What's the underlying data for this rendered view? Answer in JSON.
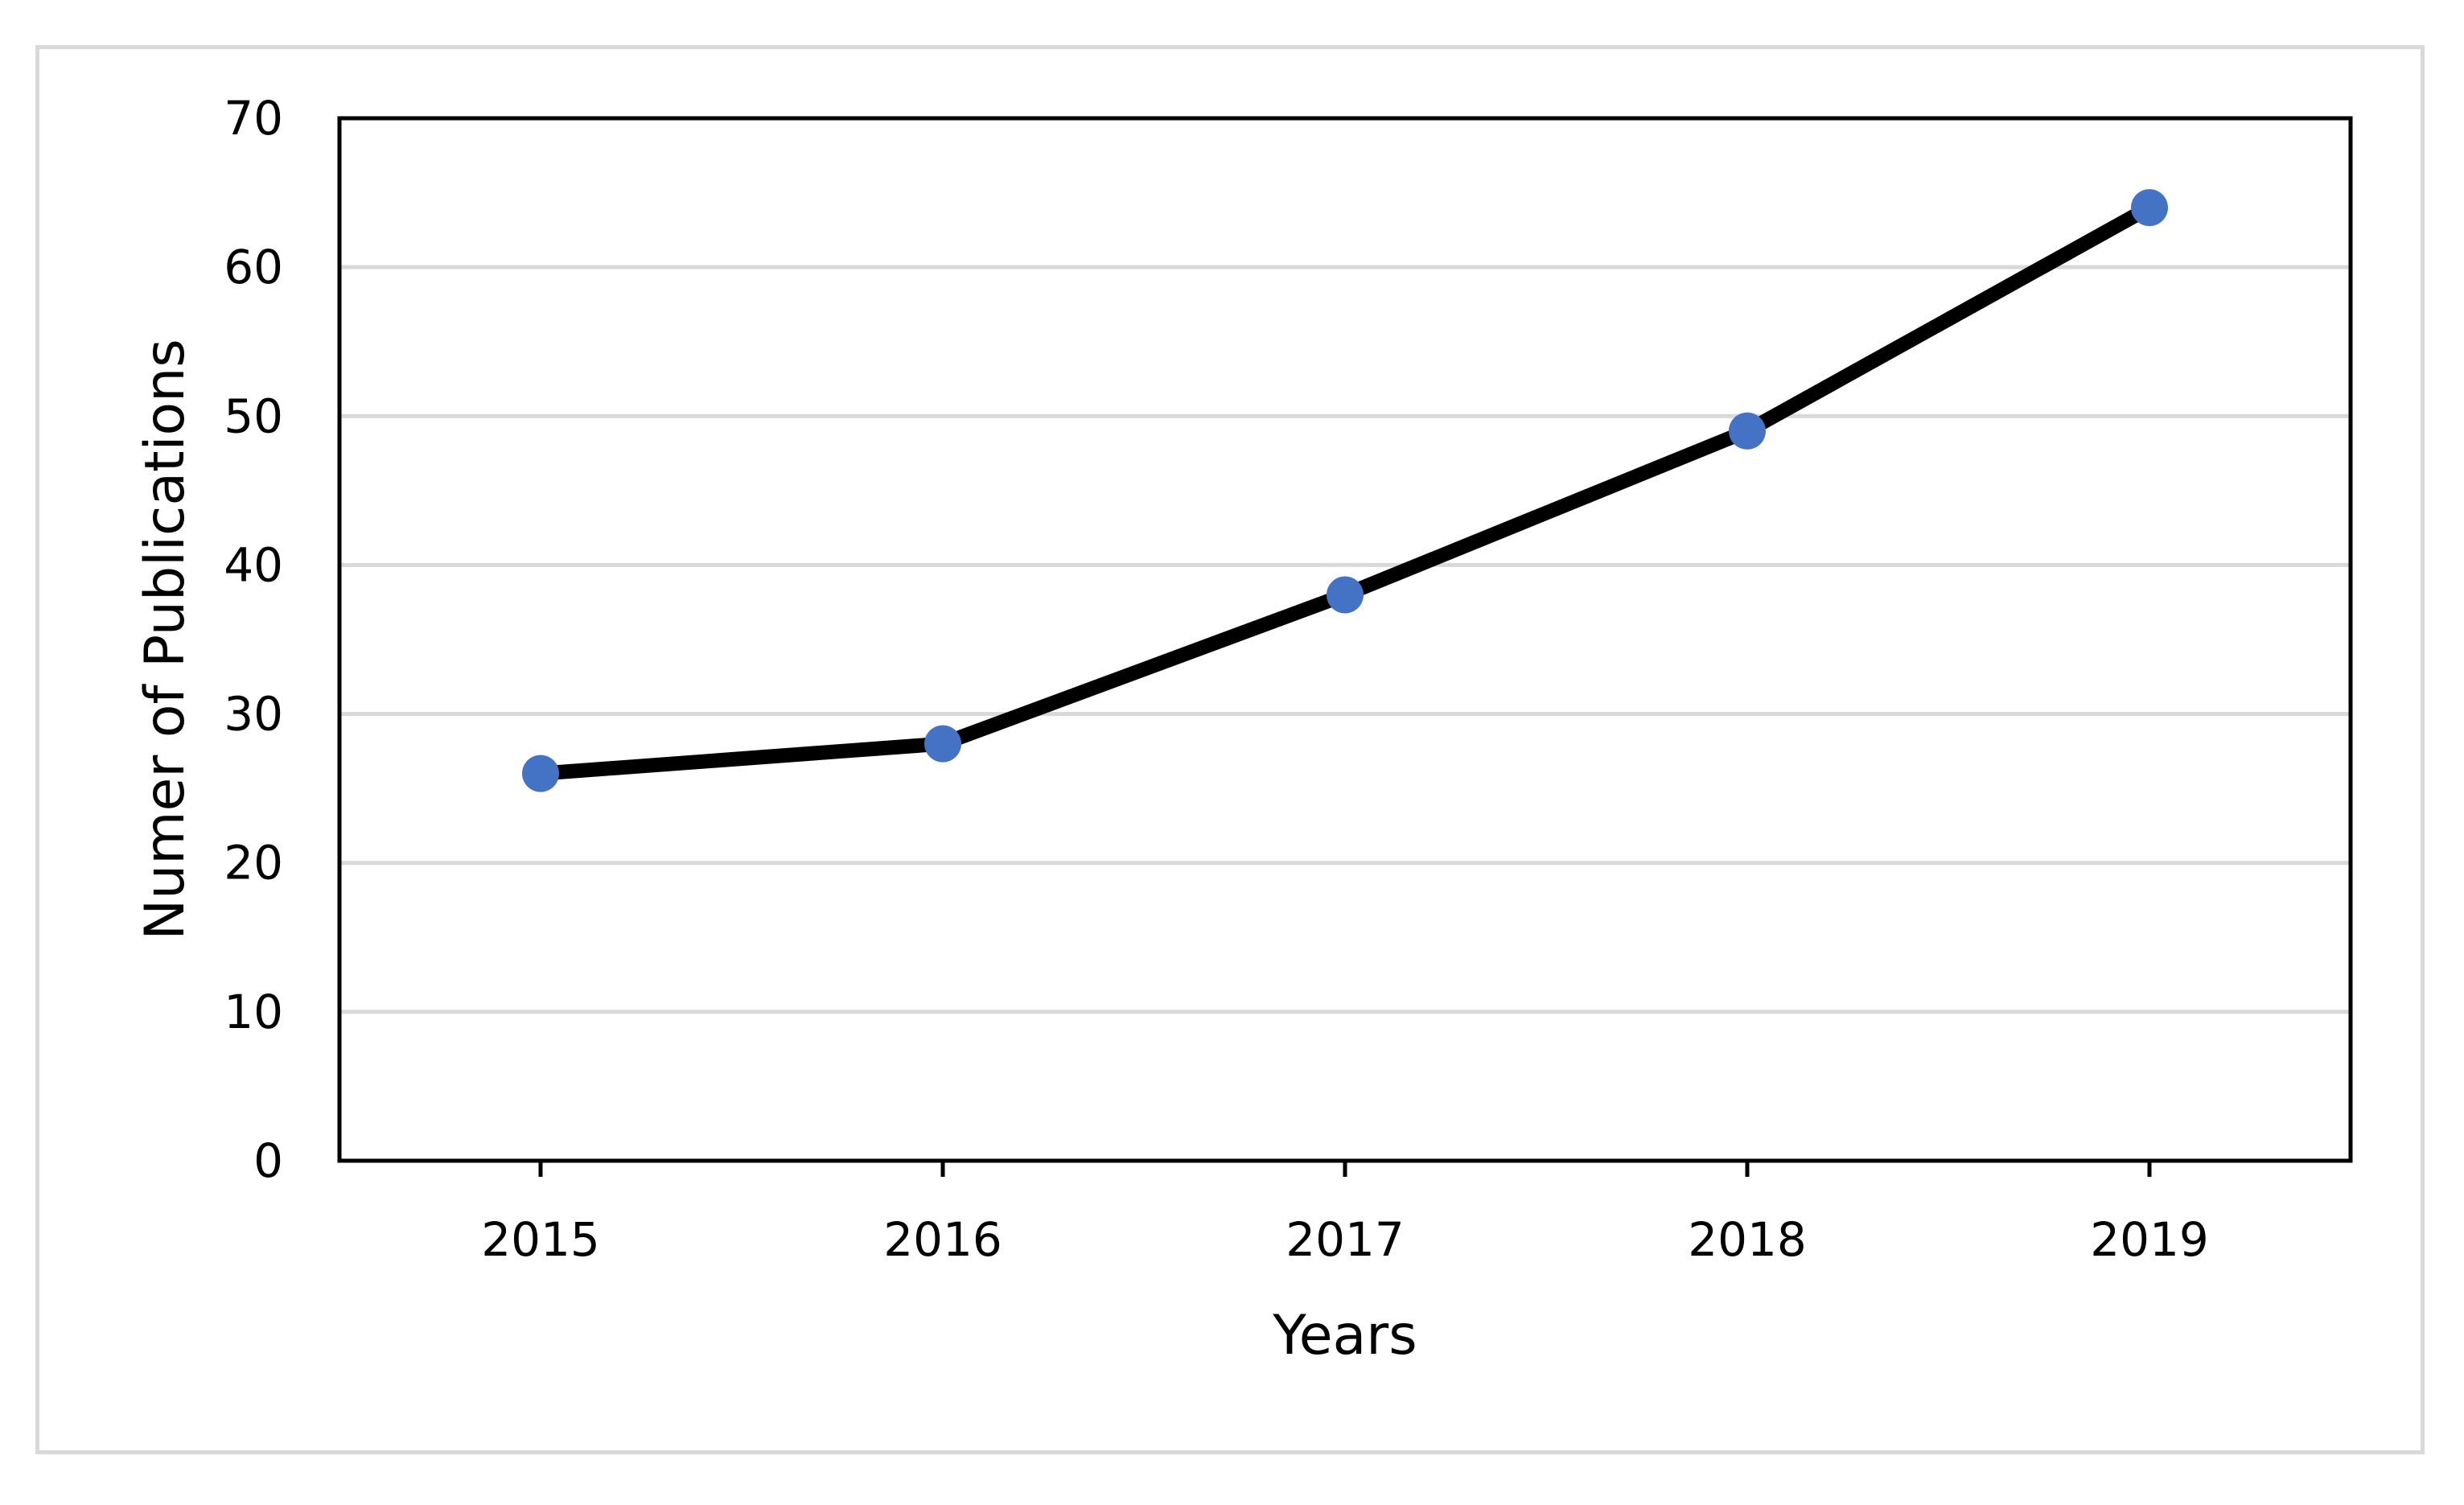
{
  "chart_data": {
    "type": "line",
    "categories": [
      "2015",
      "2016",
      "2017",
      "2018",
      "2019"
    ],
    "series": [
      {
        "values": [
          26,
          28,
          38,
          49,
          64
        ],
        "line_color": "#000000",
        "marker_color": "#4472c4"
      }
    ],
    "title": "",
    "xlabel": "Years",
    "ylabel": "Numer of Publications",
    "ylim": [
      0,
      70
    ],
    "yticks": [
      "0",
      "10",
      "20",
      "30",
      "40",
      "50",
      "60",
      "70"
    ],
    "grid": true,
    "gridline_color": "#d9d9d9",
    "legend": "none"
  }
}
